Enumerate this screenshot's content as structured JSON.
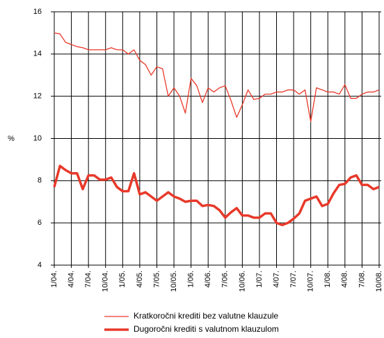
{
  "chart_data": {
    "type": "line",
    "y_label": "%",
    "categories": [
      "1/04.",
      null,
      null,
      "4/04.",
      null,
      null,
      "7/04.",
      null,
      null,
      "10/04.",
      null,
      null,
      "1/05.",
      null,
      null,
      "4/05.",
      null,
      null,
      "7/05.",
      null,
      null,
      "10/05.",
      null,
      null,
      "1/06.",
      null,
      null,
      "4/06.",
      null,
      null,
      "7/06.",
      null,
      null,
      "10/06.",
      null,
      null,
      "1/07.",
      null,
      null,
      "4/07.",
      null,
      null,
      "7/07.",
      null,
      null,
      "10/07.",
      null,
      null,
      "1/08.",
      null,
      null,
      "4/08.",
      null,
      null,
      "7/08.",
      null,
      null,
      "10/08."
    ],
    "series": [
      {
        "name": "Kratkoročni krediti bez valutne klauzule",
        "color": "#e8392a",
        "width": 1.3,
        "values": [
          15.0,
          14.95,
          14.55,
          14.45,
          14.35,
          14.3,
          14.2,
          14.2,
          14.2,
          14.2,
          14.3,
          14.2,
          14.2,
          14.0,
          14.2,
          13.7,
          13.5,
          13.0,
          13.4,
          13.3,
          12.0,
          12.4,
          12.0,
          11.2,
          12.85,
          12.5,
          11.7,
          12.4,
          12.2,
          12.4,
          12.5,
          11.8,
          11.0,
          11.6,
          12.3,
          11.85,
          11.9,
          12.1,
          12.1,
          12.2,
          12.2,
          12.3,
          12.3,
          12.1,
          12.3,
          10.8,
          12.4,
          12.3,
          12.2,
          12.2,
          12.1,
          12.55,
          11.9,
          11.9,
          12.1,
          12.2,
          12.2,
          12.3
        ]
      },
      {
        "name": "Dugoročni krediti s valutnom klauzulom",
        "color": "#e8392a",
        "width": 3.5,
        "values": [
          7.7,
          8.7,
          8.5,
          8.35,
          8.35,
          7.6,
          8.25,
          8.25,
          8.05,
          8.05,
          8.15,
          7.7,
          7.5,
          7.5,
          8.35,
          7.35,
          7.45,
          7.25,
          7.05,
          7.25,
          7.45,
          7.25,
          7.15,
          7.0,
          7.05,
          7.05,
          6.8,
          6.85,
          6.8,
          6.6,
          6.25,
          6.5,
          6.7,
          6.35,
          6.35,
          6.25,
          6.25,
          6.45,
          6.45,
          6.0,
          5.9,
          6.0,
          6.2,
          6.45,
          7.05,
          7.15,
          7.25,
          6.8,
          6.9,
          7.4,
          7.8,
          7.85,
          8.15,
          8.25,
          7.8,
          7.8,
          7.6,
          7.7
        ]
      }
    ],
    "ylim": [
      4,
      16
    ],
    "yticks": [
      4,
      6,
      8,
      10,
      12,
      14,
      16
    ],
    "grid": true
  }
}
